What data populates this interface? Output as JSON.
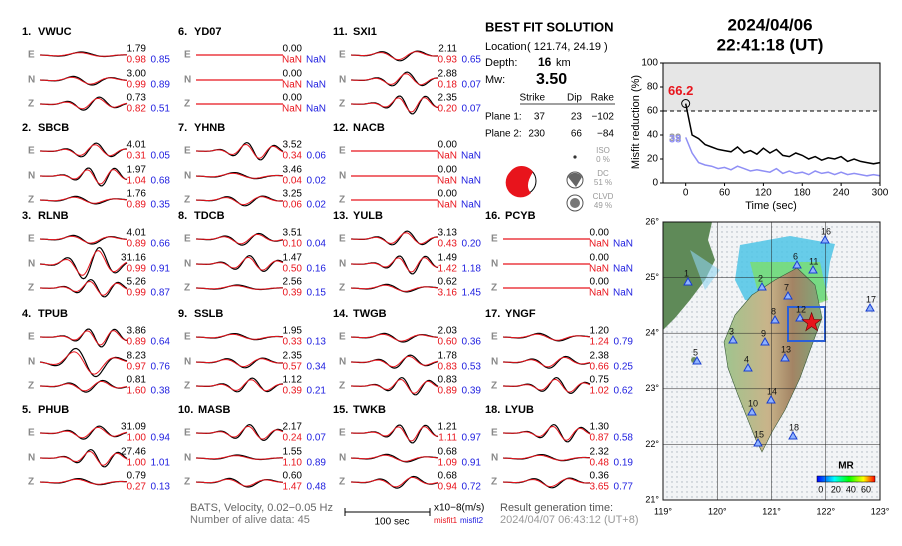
{
  "components": [
    "E",
    "N",
    "Z"
  ],
  "stations": [
    {
      "number": "1.",
      "name": "VWUC",
      "traces": [
        [
          "1.79",
          "0.98",
          "0.85"
        ],
        [
          "3.00",
          "0.99",
          "0.89"
        ],
        [
          "0.73",
          "0.82",
          "0.51"
        ]
      ]
    },
    {
      "number": "2.",
      "name": "SBCB",
      "traces": [
        [
          "4.01",
          "0.31",
          "0.05"
        ],
        [
          "1.97",
          "1.04",
          "0.68"
        ],
        [
          "1.76",
          "0.89",
          "0.35"
        ]
      ]
    },
    {
      "number": "3.",
      "name": "RLNB",
      "traces": [
        [
          "4.01",
          "0.89",
          "0.66"
        ],
        [
          "31.16",
          "0.99",
          "0.91"
        ],
        [
          "5.26",
          "0.99",
          "0.87"
        ]
      ]
    },
    {
      "number": "4.",
      "name": "TPUB",
      "traces": [
        [
          "3.86",
          "0.89",
          "0.64"
        ],
        [
          "8.23",
          "0.97",
          "0.76"
        ],
        [
          "0.81",
          "1.60",
          "0.38"
        ]
      ]
    },
    {
      "number": "5.",
      "name": "PHUB",
      "traces": [
        [
          "31.09",
          "1.00",
          "0.94"
        ],
        [
          "27.46",
          "1.00",
          "1.01"
        ],
        [
          "0.79",
          "0.27",
          "0.13"
        ]
      ]
    },
    {
      "number": "6.",
      "name": "YD07",
      "traces": [
        [
          "0.00",
          "NaN",
          "NaN"
        ],
        [
          "0.00",
          "NaN",
          "NaN"
        ],
        [
          "0.00",
          "NaN",
          "NaN"
        ]
      ]
    },
    {
      "number": "7.",
      "name": "YHNB",
      "traces": [
        [
          "3.52",
          "0.34",
          "0.06"
        ],
        [
          "3.46",
          "0.04",
          "0.02"
        ],
        [
          "3.25",
          "0.06",
          "0.02"
        ]
      ]
    },
    {
      "number": "8.",
      "name": "TDCB",
      "traces": [
        [
          "3.51",
          "0.10",
          "0.04"
        ],
        [
          "1.47",
          "0.50",
          "0.16"
        ],
        [
          "2.56",
          "0.39",
          "0.15"
        ]
      ]
    },
    {
      "number": "9.",
      "name": "SSLB",
      "traces": [
        [
          "1.95",
          "0.33",
          "0.13"
        ],
        [
          "2.35",
          "0.57",
          "0.34"
        ],
        [
          "1.12",
          "0.39",
          "0.21"
        ]
      ]
    },
    {
      "number": "10.",
      "name": "MASB",
      "traces": [
        [
          "2.17",
          "0.24",
          "0.07"
        ],
        [
          "1.55",
          "1.10",
          "0.89"
        ],
        [
          "0.60",
          "1.47",
          "0.48"
        ]
      ]
    },
    {
      "number": "11.",
      "name": "SXI1",
      "traces": [
        [
          "2.11",
          "0.93",
          "0.65"
        ],
        [
          "2.88",
          "0.18",
          "0.07"
        ],
        [
          "2.35",
          "0.20",
          "0.07"
        ]
      ]
    },
    {
      "number": "12.",
      "name": "NACB",
      "traces": [
        [
          "0.00",
          "NaN",
          "NaN"
        ],
        [
          "0.00",
          "NaN",
          "NaN"
        ],
        [
          "0.00",
          "NaN",
          "NaN"
        ]
      ]
    },
    {
      "number": "13.",
      "name": "YULB",
      "traces": [
        [
          "3.13",
          "0.43",
          "0.20"
        ],
        [
          "1.49",
          "1.42",
          "1.18"
        ],
        [
          "0.62",
          "3.16",
          "1.45"
        ]
      ]
    },
    {
      "number": "14.",
      "name": "TWGB",
      "traces": [
        [
          "2.03",
          "0.60",
          "0.36"
        ],
        [
          "1.78",
          "0.83",
          "0.53"
        ],
        [
          "0.83",
          "0.89",
          "0.39"
        ]
      ]
    },
    {
      "number": "15.",
      "name": "TWKB",
      "traces": [
        [
          "1.21",
          "1.11",
          "0.97"
        ],
        [
          "0.68",
          "1.09",
          "0.91"
        ],
        [
          "0.68",
          "0.94",
          "0.72"
        ]
      ]
    },
    {
      "number": "16.",
      "name": "PCYB",
      "traces": [
        [
          "0.00",
          "NaN",
          "NaN"
        ],
        [
          "0.00",
          "NaN",
          "NaN"
        ],
        [
          "0.00",
          "NaN",
          "NaN"
        ]
      ]
    },
    {
      "number": "17.",
      "name": "YNGF",
      "traces": [
        [
          "1.20",
          "1.24",
          "0.79"
        ],
        [
          "2.38",
          "0.66",
          "0.25"
        ],
        [
          "0.75",
          "1.02",
          "0.62"
        ]
      ]
    },
    {
      "number": "18.",
      "name": "LYUB",
      "traces": [
        [
          "1.30",
          "0.87",
          "0.58"
        ],
        [
          "2.32",
          "0.48",
          "0.19"
        ],
        [
          "0.36",
          "3.65",
          "0.77"
        ]
      ]
    }
  ],
  "solution": {
    "title": "BEST FIT SOLUTION",
    "location_label": "Location",
    "location": "( 121.74,  24.19 )",
    "depth_label": "Depth:",
    "depth": "16",
    "depth_unit": "km",
    "mw_label": "Mw:",
    "mw": "3.50",
    "headers": [
      "Strike",
      "Dip",
      "Rake"
    ],
    "planes": [
      {
        "label": "Plane 1:",
        "values": [
          "37",
          "23",
          "−102"
        ]
      },
      {
        "label": "Plane 2:",
        "values": [
          "230",
          "66",
          "−84"
        ]
      }
    ],
    "decomposition": [
      {
        "label": "ISO",
        "value": "0 %"
      },
      {
        "label": "DC",
        "value": "51 %"
      },
      {
        "label": "CLVD",
        "value": "49 %"
      }
    ]
  },
  "event": {
    "date": "2024/04/06",
    "time": "22:41:18  (UT)"
  },
  "misfit_chart": {
    "type": "line",
    "ylabel": "Misfit reduction (%)",
    "xlabel": "Time (sec)",
    "xlim": [
      -35,
      300
    ],
    "ylim": [
      0,
      100
    ],
    "xticks": [
      0,
      60,
      120,
      180,
      240,
      300
    ],
    "yticks": [
      0,
      20,
      40,
      60,
      80,
      100
    ],
    "threshold": 60,
    "x": [
      0,
      10,
      20,
      30,
      40,
      50,
      60,
      70,
      80,
      90,
      100,
      110,
      120,
      130,
      140,
      150,
      160,
      170,
      180,
      190,
      200,
      210,
      220,
      230,
      240,
      250,
      260,
      270,
      280,
      290,
      300
    ],
    "series": [
      {
        "color": "#000000",
        "values": [
          66.2,
          40,
          37,
          32,
          30,
          28,
          27,
          26,
          30,
          25,
          27,
          24,
          29,
          25,
          28,
          23,
          22,
          25,
          23,
          20,
          22,
          19,
          21,
          20,
          22,
          18,
          20,
          18,
          17,
          16,
          17
        ]
      },
      {
        "color": "#8f8ff5",
        "values": [
          38,
          25,
          17,
          15,
          14,
          12,
          13,
          11,
          14,
          12,
          10,
          11,
          10,
          9,
          12,
          8,
          10,
          8,
          9,
          7,
          10,
          8,
          9,
          7,
          9,
          7,
          8,
          7,
          6,
          7,
          6
        ]
      }
    ],
    "annotations": [
      {
        "label": "66.2",
        "value": 66.2,
        "color": "#e8141c"
      },
      {
        "label": "39",
        "value": 39,
        "color": "#9a9a9a"
      },
      {
        "label": "38",
        "value": 38,
        "color": "#8f8ff5"
      }
    ]
  },
  "map": {
    "xlim": [
      119,
      123
    ],
    "ylim": [
      21,
      26
    ],
    "xticks": [
      {
        "value": 119,
        "label": "119°"
      },
      {
        "value": 120,
        "label": "120°"
      },
      {
        "value": 121,
        "label": "121°"
      },
      {
        "value": 122,
        "label": "122°"
      },
      {
        "value": 123,
        "label": "123°"
      }
    ],
    "yticks": [
      {
        "value": 21,
        "label": "21°"
      },
      {
        "value": 22,
        "label": "22°"
      },
      {
        "value": 23,
        "label": "23°"
      },
      {
        "value": 24,
        "label": "24°"
      },
      {
        "value": 25,
        "label": "25°"
      },
      {
        "value": 26,
        "label": "26°"
      }
    ],
    "stations": [
      "1",
      "2",
      "3",
      "4",
      "5",
      "6",
      "7",
      "8",
      "9",
      "10",
      "11",
      "12",
      "13",
      "14",
      "15",
      "16",
      "17",
      "18"
    ],
    "colorbar": {
      "title": "MR",
      "lim": [
        -5,
        72
      ],
      "ticks": [
        0,
        20,
        40,
        60
      ]
    }
  },
  "footer": {
    "filter": "BATS, Velocity, 0.02−0.05 Hz",
    "alive": "Number of alive data: 45",
    "scale": "100 sec",
    "units": "x10−8(m/s)",
    "misfit1": "misfit1",
    "misfit2": "misfit2",
    "result_label": "Result generation time:",
    "result_time": "2024/04/07 06:43:12 (UT+8)"
  }
}
